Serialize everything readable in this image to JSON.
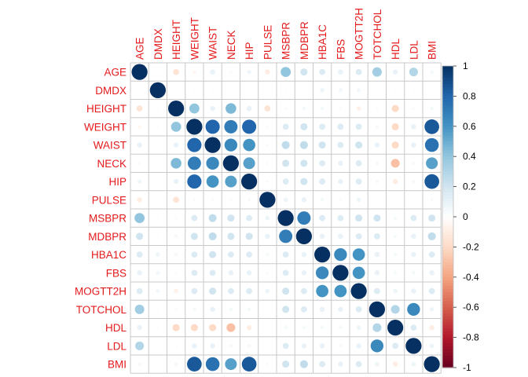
{
  "chart_data": {
    "type": "heatmap",
    "variables": [
      "AGE",
      "DMDX",
      "HEIGHT",
      "WEIGHT",
      "WAIST",
      "NECK",
      "HIP",
      "PULSE",
      "MSBPR",
      "MDBPR",
      "HBA1C",
      "FBS",
      "MOGTT2H",
      "TOTCHOL",
      "HDL",
      "LDL",
      "BMI"
    ],
    "label_color": "#e41a1c",
    "colorbar": {
      "range": [
        -1,
        1
      ],
      "ticks": [
        "1",
        "0.8",
        "0.6",
        "0.4",
        "0.2",
        "0",
        "-0.2",
        "-0.4",
        "-0.6",
        "-0.8",
        "-1"
      ],
      "colors": {
        "neg": "#67001F",
        "zero": "#FFFFFF",
        "pos": "#053061"
      }
    },
    "matrix": [
      [
        1.0,
        0.0,
        -0.15,
        -0.05,
        0.1,
        0.03,
        0.07,
        -0.1,
        0.4,
        0.2,
        0.15,
        0.1,
        0.15,
        0.35,
        0.1,
        0.3,
        0.05
      ],
      [
        0.0,
        1.0,
        0.02,
        0.02,
        0.02,
        0.02,
        0.02,
        0.0,
        0.02,
        0.02,
        0.08,
        0.06,
        0.06,
        0.02,
        0.02,
        0.02,
        0.02
      ],
      [
        -0.15,
        0.02,
        1.0,
        0.4,
        0.1,
        0.45,
        0.1,
        -0.15,
        0.03,
        0.05,
        0.05,
        0.03,
        -0.08,
        0.03,
        -0.2,
        0.03,
        0.05
      ],
      [
        -0.05,
        0.02,
        0.4,
        1.0,
        0.8,
        0.7,
        0.8,
        0.03,
        0.15,
        0.2,
        0.15,
        0.15,
        0.15,
        0.05,
        -0.2,
        0.1,
        0.85
      ],
      [
        0.1,
        0.02,
        0.1,
        0.8,
        1.0,
        0.65,
        0.6,
        0.03,
        0.25,
        0.25,
        0.2,
        0.15,
        0.2,
        0.1,
        -0.2,
        0.1,
        0.75
      ],
      [
        0.03,
        0.02,
        0.45,
        0.7,
        0.65,
        1.0,
        0.55,
        0.03,
        0.2,
        0.2,
        0.15,
        0.1,
        0.15,
        0.05,
        -0.3,
        0.05,
        0.55
      ],
      [
        0.07,
        0.02,
        0.1,
        0.8,
        0.6,
        0.55,
        1.0,
        0.03,
        0.15,
        0.2,
        0.15,
        0.1,
        0.15,
        0.05,
        -0.1,
        0.05,
        0.85
      ],
      [
        -0.1,
        0.0,
        -0.15,
        0.03,
        0.03,
        0.03,
        0.03,
        1.0,
        0.08,
        0.1,
        0.05,
        0.03,
        0.08,
        0.0,
        0.0,
        0.0,
        0.03
      ],
      [
        0.4,
        0.02,
        0.03,
        0.15,
        0.25,
        0.2,
        0.15,
        0.08,
        1.0,
        0.7,
        0.15,
        0.15,
        0.2,
        0.2,
        0.05,
        0.15,
        0.2
      ],
      [
        0.2,
        0.02,
        0.05,
        0.2,
        0.25,
        0.2,
        0.2,
        0.1,
        0.7,
        1.0,
        0.1,
        0.1,
        0.15,
        0.15,
        0.05,
        0.1,
        0.25
      ],
      [
        0.15,
        0.08,
        0.05,
        0.15,
        0.2,
        0.15,
        0.15,
        0.05,
        0.15,
        0.1,
        1.0,
        0.65,
        0.6,
        0.1,
        0.05,
        0.1,
        0.15
      ],
      [
        0.1,
        0.06,
        0.03,
        0.15,
        0.15,
        0.1,
        0.1,
        0.03,
        0.15,
        0.1,
        0.65,
        1.0,
        0.6,
        0.1,
        0.05,
        0.05,
        0.1
      ],
      [
        0.15,
        0.06,
        -0.08,
        0.15,
        0.2,
        0.15,
        0.15,
        0.08,
        0.2,
        0.15,
        0.6,
        0.6,
        1.0,
        0.15,
        0.08,
        0.1,
        0.15
      ],
      [
        0.35,
        0.02,
        0.03,
        0.05,
        0.1,
        0.05,
        0.05,
        0.0,
        0.2,
        0.15,
        0.1,
        0.1,
        0.15,
        1.0,
        0.3,
        0.65,
        0.08
      ],
      [
        0.1,
        0.02,
        -0.2,
        -0.2,
        -0.2,
        -0.3,
        -0.1,
        0.0,
        0.05,
        0.05,
        0.05,
        0.05,
        0.08,
        0.3,
        1.0,
        0.15,
        -0.1
      ],
      [
        0.3,
        0.02,
        0.03,
        0.1,
        0.1,
        0.05,
        0.05,
        0.0,
        0.15,
        0.1,
        0.1,
        0.05,
        0.1,
        0.65,
        0.15,
        1.0,
        0.08
      ],
      [
        0.05,
        0.02,
        0.05,
        0.85,
        0.75,
        0.55,
        0.85,
        0.03,
        0.2,
        0.25,
        0.15,
        0.1,
        0.15,
        0.08,
        -0.1,
        0.08,
        1.0
      ]
    ]
  }
}
